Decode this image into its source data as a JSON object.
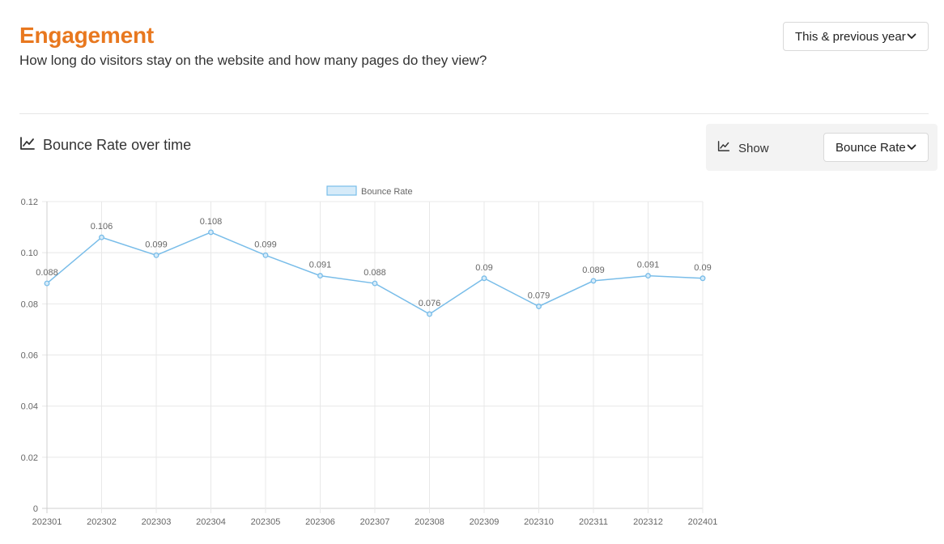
{
  "header": {
    "title": "Engagement",
    "subtitle": "How long do visitors stay on the website and how many pages do they view?",
    "period_select": "This & previous year"
  },
  "section": {
    "title": "Bounce Rate over time",
    "icon": "line-chart-icon"
  },
  "controls": {
    "show_label": "Show",
    "metric_select": "Bounce Rate"
  },
  "colors": {
    "accent": "#e8781f",
    "series": "#79bde9"
  },
  "chart_data": {
    "type": "line",
    "categories": [
      "202301",
      "202302",
      "202303",
      "202304",
      "202305",
      "202306",
      "202307",
      "202308",
      "202309",
      "202310",
      "202311",
      "202312",
      "202401"
    ],
    "series": [
      {
        "name": "Bounce Rate",
        "values": [
          0.088,
          0.106,
          0.099,
          0.108,
          0.099,
          0.091,
          0.088,
          0.076,
          0.09,
          0.079,
          0.089,
          0.091,
          0.09
        ]
      }
    ],
    "yticks": [
      "0",
      "0.02",
      "0.04",
      "0.06",
      "0.08",
      "0.10",
      "0.12"
    ],
    "ylim": [
      0,
      0.12
    ],
    "grid": true,
    "data_labels": true,
    "legend": "top-center"
  }
}
